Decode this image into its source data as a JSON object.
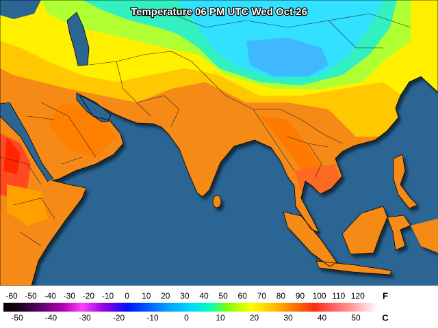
{
  "header": {
    "title": "Temperature 06 PM UTC Wed Oct 26"
  },
  "legend": {
    "fahrenheit": {
      "unit": "F",
      "labels": [
        -60,
        -50,
        -40,
        -30,
        -20,
        -10,
        0,
        10,
        20,
        30,
        40,
        50,
        60,
        70,
        80,
        90,
        100,
        110,
        120
      ]
    },
    "celsius": {
      "unit": "C",
      "labels": [
        -50,
        -40,
        -30,
        -20,
        -10,
        0,
        10,
        20,
        30,
        40,
        50
      ]
    }
  }
}
